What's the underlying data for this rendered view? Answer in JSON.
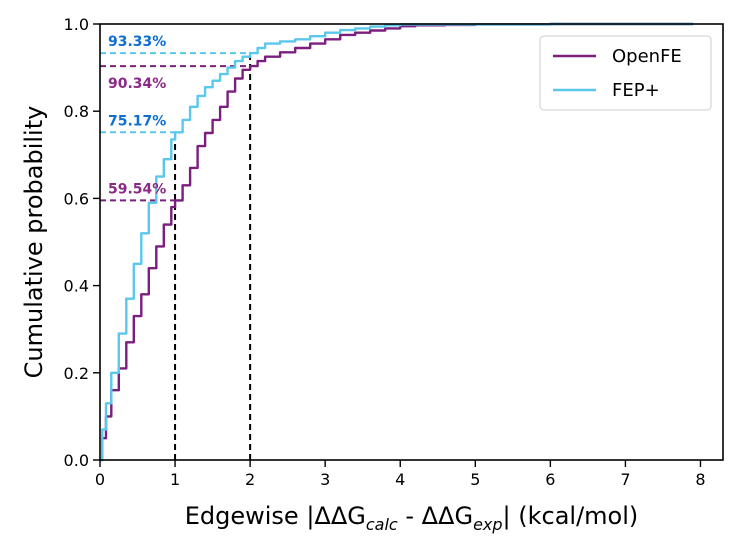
{
  "chart_data": {
    "type": "line",
    "xlabel": {
      "main": "Edgewise |ΔΔG",
      "sub1": "calc",
      "mid": " - ΔΔG",
      "sub2": "exp",
      "end": "| (kcal/mol)"
    },
    "ylabel": "Cumulative probability",
    "xlim": [
      0,
      8.3
    ],
    "ylim": [
      0,
      1.0
    ],
    "xticks": [
      0,
      1,
      2,
      3,
      4,
      5,
      6,
      7,
      8
    ],
    "yticks": [
      0.0,
      0.2,
      0.4,
      0.6,
      0.8,
      1.0
    ],
    "grid": false,
    "legend_position": "top-right",
    "colors": {
      "openfe": "#7b1f7f",
      "fep": "#5ac8ec",
      "fep_label": "#0f6fd1",
      "openfe_label": "#8b2a86",
      "reference": "#000000"
    },
    "series": [
      {
        "name": "OpenFE",
        "key": "openfe",
        "x": [
          0,
          0.03,
          0.08,
          0.15,
          0.25,
          0.35,
          0.45,
          0.55,
          0.65,
          0.75,
          0.85,
          0.95,
          1.0,
          1.1,
          1.2,
          1.3,
          1.4,
          1.5,
          1.6,
          1.7,
          1.8,
          1.9,
          2.0,
          2.1,
          2.2,
          2.4,
          2.6,
          2.8,
          3.0,
          3.2,
          3.4,
          3.6,
          3.8,
          4.0,
          4.2,
          4.6,
          5.0,
          6.0,
          7.9
        ],
        "y": [
          0,
          0.05,
          0.1,
          0.16,
          0.21,
          0.27,
          0.33,
          0.38,
          0.44,
          0.49,
          0.54,
          0.58,
          0.5954,
          0.63,
          0.67,
          0.72,
          0.75,
          0.78,
          0.81,
          0.845,
          0.875,
          0.895,
          0.9034,
          0.915,
          0.925,
          0.935,
          0.945,
          0.955,
          0.965,
          0.975,
          0.98,
          0.985,
          0.99,
          0.995,
          0.997,
          0.998,
          0.999,
          1.0,
          1.0
        ]
      },
      {
        "name": "FEP+",
        "key": "fep",
        "x": [
          0,
          0.03,
          0.08,
          0.15,
          0.25,
          0.35,
          0.45,
          0.55,
          0.65,
          0.75,
          0.85,
          0.95,
          1.0,
          1.1,
          1.2,
          1.3,
          1.4,
          1.5,
          1.6,
          1.7,
          1.8,
          1.9,
          2.0,
          2.1,
          2.2,
          2.4,
          2.6,
          2.8,
          3.0,
          3.2,
          3.4,
          3.6,
          3.8,
          4.0,
          6.0,
          7.9
        ],
        "y": [
          0,
          0.07,
          0.13,
          0.2,
          0.29,
          0.37,
          0.45,
          0.52,
          0.59,
          0.65,
          0.69,
          0.735,
          0.7517,
          0.78,
          0.81,
          0.835,
          0.855,
          0.87,
          0.885,
          0.9,
          0.915,
          0.925,
          0.9333,
          0.945,
          0.955,
          0.96,
          0.965,
          0.972,
          0.98,
          0.986,
          0.99,
          0.994,
          0.997,
          0.999,
          1.0,
          1.0
        ]
      }
    ],
    "annotations": [
      {
        "text": "93.33%",
        "x": 2,
        "y": 0.9333,
        "series": "fep",
        "label_side": "above"
      },
      {
        "text": "90.34%",
        "x": 2,
        "y": 0.9034,
        "series": "openfe",
        "label_side": "below"
      },
      {
        "text": "75.17%",
        "x": 1,
        "y": 0.7517,
        "series": "fep",
        "label_side": "above"
      },
      {
        "text": "59.54%",
        "x": 1,
        "y": 0.5954,
        "series": "openfe",
        "label_side": "above"
      }
    ],
    "reference_lines": [
      {
        "x": 1,
        "y": 0.7517
      },
      {
        "x": 2,
        "y": 0.9333
      }
    ]
  }
}
